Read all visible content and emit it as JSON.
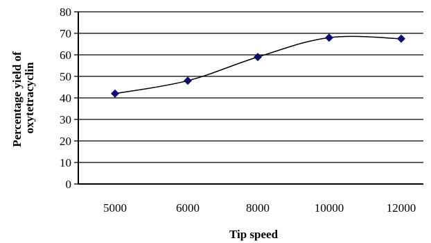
{
  "chart_data": {
    "type": "line",
    "categories": [
      "5000",
      "6000",
      "8000",
      "10000",
      "12000"
    ],
    "values": [
      42,
      48,
      59,
      68,
      67.5
    ],
    "xlabel": "Tip speed",
    "ylabel_line1": "Percentage yield of",
    "ylabel_line2": "oxytetracyclin",
    "ylim": [
      0,
      80
    ],
    "yticks": [
      0,
      10,
      20,
      30,
      40,
      50,
      60,
      70,
      80
    ],
    "grid": "horizontal",
    "line_color": "#000000",
    "marker_color": "#0d0d6b",
    "marker": "diamond",
    "smooth": true,
    "legend": "none"
  }
}
